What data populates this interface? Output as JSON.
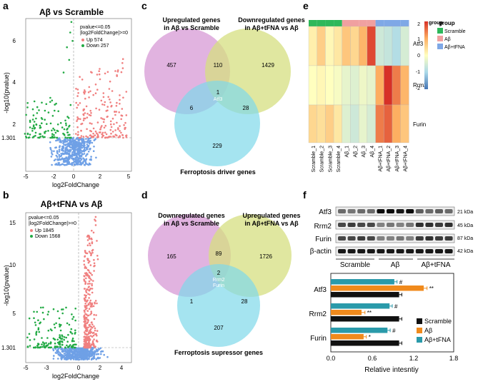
{
  "panels": {
    "a": {
      "letter": "a",
      "title": "Aβ vs Scramble",
      "ylabel": "-log10(pvalue)",
      "xlabel": "log2FoldChange",
      "yticks": [
        "6",
        "4",
        "2",
        "1.301"
      ],
      "xticks": [
        "-5",
        "-2",
        "0",
        "2",
        "5"
      ],
      "legend": {
        "criteria1": "pvalue<=0.05",
        "criteria2": "|log2FoldChange|>=0",
        "up": "Up 574",
        "down": "Down 257"
      }
    },
    "b": {
      "letter": "b",
      "title": "Aβ+tFNA vs Aβ",
      "ylabel": "-log10(pvalue)",
      "xlabel": "log2FoldChange",
      "yticks": [
        "15",
        "10",
        "5",
        "1.301"
      ],
      "xticks": [
        "-5",
        "-3",
        "0",
        "2",
        "4"
      ],
      "legend": {
        "criteria1": "pvalue<=0.05",
        "criteria2": "|log2FoldChange|>=0",
        "up": "Up 1845",
        "down": "Down 1568"
      }
    },
    "c": {
      "letter": "c",
      "label_left": [
        "Upregulated genes",
        "in Aβ vs Scramble"
      ],
      "label_right": [
        "Downregulated genes",
        "in Aβ+tFNA vs Aβ"
      ],
      "label_bottom": "Ferroptosis driver genes",
      "counts": {
        "left": "457",
        "top": "110",
        "right": "1429",
        "center": "1",
        "center_gene": "Atf3",
        "left_bottom": "6",
        "right_bottom": "28",
        "bottom": "229"
      }
    },
    "d": {
      "letter": "d",
      "label_left": [
        "Downregulated genes",
        "in Aβ vs Scramble"
      ],
      "label_right": [
        "Upregulated genes",
        "in Aβ+tFNA vs Aβ"
      ],
      "label_bottom": "Ferroptosis supressor genes",
      "counts": {
        "left": "165",
        "top": "89",
        "right": "1726",
        "center": "2",
        "center_gene1": "Rrm2",
        "center_gene2": "Furin",
        "left_bottom": "1",
        "right_bottom": "28",
        "bottom": "207"
      }
    },
    "e": {
      "letter": "e",
      "genes": [
        "Atf3",
        "Rrm2",
        "Furin"
      ],
      "columns": [
        "Scramble_1",
        "Scramble_2",
        "Scramble_3",
        "Scramble_4",
        "Aβ_1",
        "Aβ_2",
        "Aβ_3",
        "Aβ_4",
        "Aβ+tFNA_1",
        "Aβ+tFNA_2",
        "Aβ+tFNA_3",
        "Aβ+tFNA_4"
      ],
      "scale_label": "group",
      "scale_ticks": [
        "2",
        "1",
        "0",
        "-1",
        "-2"
      ],
      "group_title": "group",
      "groups": [
        {
          "name": "Scramble",
          "color": "#2db85a"
        },
        {
          "name": "Aβ",
          "color": "#f0a0a0"
        },
        {
          "name": "Aβ+tFNA",
          "color": "#7fa8e6"
        }
      ],
      "values": [
        [
          0.2,
          0.6,
          0.1,
          0.3,
          0.7,
          0.5,
          0.9,
          1.8,
          -0.6,
          -0.7,
          -0.9,
          -0.5
        ],
        [
          0.0,
          0.1,
          0.0,
          -0.1,
          -0.3,
          -0.4,
          -0.2,
          -0.3,
          1.0,
          2.2,
          1.4,
          0.9
        ],
        [
          0.5,
          0.4,
          0.6,
          0.3,
          -0.4,
          -0.6,
          -0.3,
          -0.5,
          1.4,
          1.6,
          1.0,
          0.7
        ]
      ]
    },
    "f": {
      "letter": "f",
      "blot_labels": [
        "Atf3",
        "Rrm2",
        "Furin",
        "β-actin"
      ],
      "kda": [
        "21 kDa",
        "45 kDa",
        "87 kDa",
        "42 kDa"
      ],
      "lanes": [
        "Scramble",
        "Aβ",
        "Aβ+tFNA"
      ]
    }
  },
  "chart_data": {
    "type": "bar",
    "orientation": "horizontal",
    "categories": [
      "Atf3",
      "Rrm2",
      "Furin"
    ],
    "series": [
      {
        "name": "Scramble",
        "color": "#111111",
        "values": [
          1.0,
          1.0,
          1.0
        ]
      },
      {
        "name": "Aβ",
        "color": "#f08a1c",
        "values": [
          1.36,
          0.45,
          0.48
        ]
      },
      {
        "name": "Aβ+tFNA",
        "color": "#2a9aaa",
        "values": [
          0.93,
          0.86,
          0.83
        ]
      }
    ],
    "errors": [
      [
        0.04,
        0.04,
        0.04
      ],
      [
        0.05,
        0.05,
        0.04
      ],
      [
        0.04,
        0.04,
        0.04
      ]
    ],
    "annotations": {
      "Atf3": {
        "Aβ": "**",
        "Aβ+tFNA": "#"
      },
      "Rrm2": {
        "Aβ": "**",
        "Aβ+tFNA": "#"
      },
      "Furin": {
        "Aβ": "*",
        "Aβ+tFNA": "#"
      }
    },
    "xlabel": "Relative intesntiy",
    "xticks": [
      "0.0",
      "0.6",
      "1.2",
      "1.8"
    ],
    "xlim": [
      0,
      1.8
    ]
  }
}
